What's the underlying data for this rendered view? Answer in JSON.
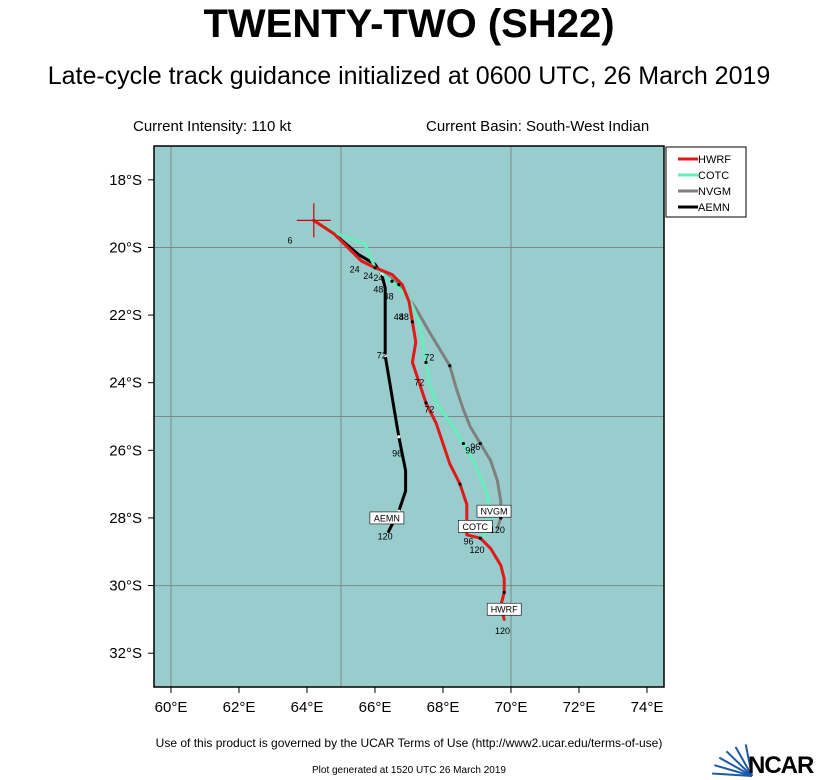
{
  "header": {
    "title": "TWENTY-TWO (SH22)",
    "subtitle": "Late-cycle track guidance initialized at 0600 UTC, 26 March 2019",
    "intensity": "Current Intensity: 110 kt",
    "basin": "Current Basin: South-West Indian"
  },
  "footer": {
    "terms": "Use of this product is governed by the UCAR Terms of Use (http://www2.ucar.edu/terms-of-use)",
    "generated": "Plot generated at 1520 UTC  26 March 2019",
    "logo": "NCAR"
  },
  "colors": {
    "ocean": "#99cccc",
    "HWRF": "#e11919",
    "COTC": "#66eebb",
    "NVGM": "#808080",
    "AEMN": "#000000"
  },
  "map": {
    "lon_range": [
      59.5,
      74.5
    ],
    "lat_range": [
      -33,
      -17
    ],
    "lon_ticks": [
      {
        "v": 60,
        "label": "60°E"
      },
      {
        "v": 62,
        "label": "62°E"
      },
      {
        "v": 64,
        "label": "64°E"
      },
      {
        "v": 66,
        "label": "66°E"
      },
      {
        "v": 68,
        "label": "68°E"
      },
      {
        "v": 70,
        "label": "70°E"
      },
      {
        "v": 72,
        "label": "72°E"
      },
      {
        "v": 74,
        "label": "74°E"
      }
    ],
    "lat_ticks": [
      {
        "v": -18,
        "label": "18°S"
      },
      {
        "v": -20,
        "label": "20°S"
      },
      {
        "v": -22,
        "label": "22°S"
      },
      {
        "v": -24,
        "label": "24°S"
      },
      {
        "v": -26,
        "label": "26°S"
      },
      {
        "v": -28,
        "label": "28°S"
      },
      {
        "v": -30,
        "label": "30°S"
      },
      {
        "v": -32,
        "label": "32°S"
      }
    ],
    "grid_lons": [
      60,
      65,
      70
    ],
    "grid_lats": [
      -20,
      -25,
      -30
    ],
    "current_position": {
      "lon": 64.2,
      "lat": -19.2
    }
  },
  "legend": [
    "HWRF",
    "COTC",
    "NVGM",
    "AEMN"
  ],
  "chart_data": {
    "type": "map-track",
    "tracks": [
      {
        "name": "HWRF",
        "color": "#e11919",
        "points": [
          [
            64.2,
            -19.2
          ],
          [
            64.8,
            -19.6
          ],
          [
            65.3,
            -20.1
          ],
          [
            65.6,
            -20.4
          ],
          [
            66.0,
            -20.6
          ],
          [
            66.5,
            -20.8
          ],
          [
            66.8,
            -21.1
          ],
          [
            67.0,
            -21.6
          ],
          [
            67.1,
            -22.2
          ],
          [
            67.2,
            -22.8
          ],
          [
            67.1,
            -23.4
          ],
          [
            67.3,
            -24.0
          ],
          [
            67.5,
            -24.6
          ],
          [
            67.8,
            -25.2
          ],
          [
            68.0,
            -25.8
          ],
          [
            68.2,
            -26.4
          ],
          [
            68.5,
            -27.0
          ],
          [
            68.7,
            -27.6
          ],
          [
            68.7,
            -28.1
          ],
          [
            68.7,
            -28.5
          ],
          [
            69.1,
            -28.6
          ],
          [
            69.4,
            -28.9
          ],
          [
            69.7,
            -29.4
          ],
          [
            69.8,
            -29.8
          ],
          [
            69.8,
            -30.2
          ],
          [
            69.7,
            -30.6
          ],
          [
            69.8,
            -31.0
          ]
        ]
      },
      {
        "name": "COTC",
        "color": "#66eebb",
        "points": [
          [
            64.2,
            -19.2
          ],
          [
            64.9,
            -19.6
          ],
          [
            65.7,
            -19.9
          ],
          [
            66.0,
            -20.6
          ],
          [
            66.5,
            -21.0
          ],
          [
            67.0,
            -21.5
          ],
          [
            67.3,
            -22.2
          ],
          [
            67.4,
            -22.8
          ],
          [
            67.5,
            -23.4
          ],
          [
            67.6,
            -24.0
          ],
          [
            67.8,
            -24.6
          ],
          [
            68.3,
            -25.3
          ],
          [
            68.6,
            -25.8
          ],
          [
            68.9,
            -26.3
          ],
          [
            69.1,
            -26.8
          ],
          [
            69.3,
            -27.3
          ],
          [
            69.4,
            -27.9
          ],
          [
            69.3,
            -28.4
          ],
          [
            69.1,
            -28.6
          ]
        ]
      },
      {
        "name": "NVGM",
        "color": "#808080",
        "points": [
          [
            64.2,
            -19.2
          ],
          [
            64.8,
            -19.6
          ],
          [
            65.6,
            -20.4
          ],
          [
            66.2,
            -20.7
          ],
          [
            66.7,
            -21.1
          ],
          [
            67.2,
            -21.8
          ],
          [
            67.6,
            -22.5
          ],
          [
            67.9,
            -23.0
          ],
          [
            68.2,
            -23.5
          ],
          [
            68.4,
            -24.2
          ],
          [
            68.6,
            -24.8
          ],
          [
            68.8,
            -25.3
          ],
          [
            69.1,
            -25.8
          ],
          [
            69.4,
            -26.3
          ],
          [
            69.6,
            -26.9
          ],
          [
            69.7,
            -27.5
          ],
          [
            69.7,
            -28.0
          ],
          [
            69.6,
            -28.3
          ]
        ]
      },
      {
        "name": "AEMN",
        "color": "#000000",
        "points": [
          [
            64.2,
            -19.2
          ],
          [
            64.8,
            -19.6
          ],
          [
            65.5,
            -20.2
          ],
          [
            66.0,
            -20.5
          ],
          [
            66.2,
            -20.8
          ],
          [
            66.3,
            -21.2
          ],
          [
            66.3,
            -21.8
          ],
          [
            66.3,
            -22.5
          ],
          [
            66.3,
            -23.2
          ],
          [
            66.4,
            -23.8
          ],
          [
            66.5,
            -24.4
          ],
          [
            66.6,
            -25.0
          ],
          [
            66.7,
            -25.6
          ],
          [
            66.8,
            -26.1
          ],
          [
            66.9,
            -26.6
          ],
          [
            66.9,
            -27.2
          ],
          [
            66.7,
            -27.8
          ],
          [
            66.5,
            -28.2
          ],
          [
            66.4,
            -28.4
          ]
        ]
      }
    ],
    "tau_labels": [
      {
        "text": "24",
        "lon": 65.4,
        "lat": -20.65
      },
      {
        "text": "24",
        "lon": 65.8,
        "lat": -20.85
      },
      {
        "text": "24",
        "lon": 66.1,
        "lat": -20.9
      },
      {
        "text": "48",
        "lon": 66.1,
        "lat": -21.25
      },
      {
        "text": "48",
        "lon": 66.4,
        "lat": -21.45
      },
      {
        "text": "48",
        "lon": 66.7,
        "lat": -22.05
      },
      {
        "text": "48",
        "lon": 66.85,
        "lat": -22.05
      },
      {
        "text": "72",
        "lon": 66.2,
        "lat": -23.2
      },
      {
        "text": "72",
        "lon": 67.6,
        "lat": -23.25
      },
      {
        "text": "72",
        "lon": 67.3,
        "lat": -24.0
      },
      {
        "text": "72",
        "lon": 67.6,
        "lat": -24.8
      },
      {
        "text": "96",
        "lon": 66.65,
        "lat": -26.1
      },
      {
        "text": "96",
        "lon": 68.8,
        "lat": -26.0
      },
      {
        "text": "96",
        "lon": 68.95,
        "lat": -25.9
      },
      {
        "text": "96",
        "lon": 68.75,
        "lat": -28.7
      },
      {
        "text": "120",
        "lon": 66.3,
        "lat": -28.55
      },
      {
        "text": "120",
        "lon": 69.6,
        "lat": -28.35
      },
      {
        "text": "120",
        "lon": 69.0,
        "lat": -28.95
      },
      {
        "text": "120",
        "lon": 69.75,
        "lat": -31.35
      },
      {
        "text": "6",
        "lon": 63.5,
        "lat": -19.8
      }
    ],
    "end_labels": [
      {
        "text": "AEMN",
        "lon": 66.35,
        "lat": -28.0
      },
      {
        "text": "NVGM",
        "lon": 69.5,
        "lat": -27.8
      },
      {
        "text": "COTC",
        "lon": 68.95,
        "lat": -28.25
      },
      {
        "text": "HWRF",
        "lon": 69.8,
        "lat": -30.7
      }
    ]
  }
}
